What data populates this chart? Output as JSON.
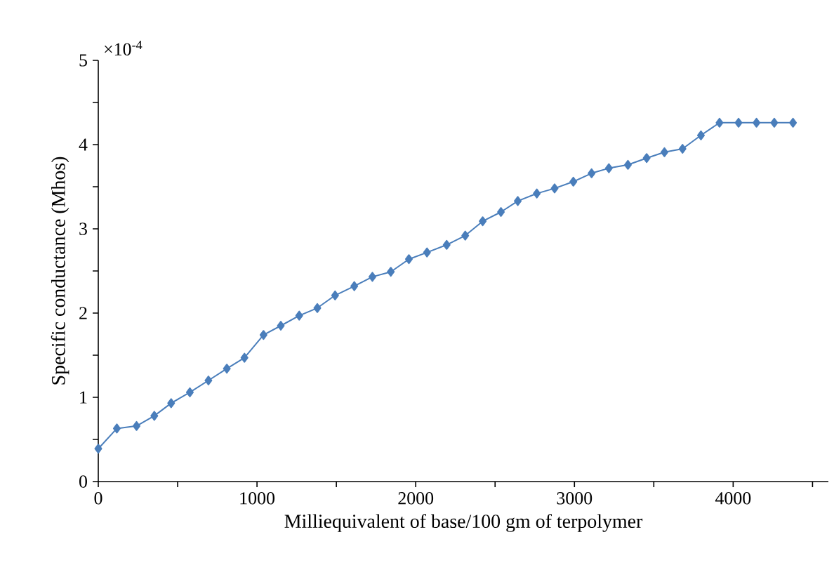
{
  "chart_data": {
    "type": "line",
    "xlabel": "Milliequivalent of base/100 gm of terpolymer",
    "ylabel": "Specific conductance (Mhos)",
    "annotations": [
      "×10$^{-4}$"
    ],
    "x": [
      0,
      117,
      241,
      353,
      459,
      577,
      694,
      810,
      921,
      1041,
      1150,
      1266,
      1380,
      1492,
      1613,
      1727,
      1843,
      1957,
      2071,
      2195,
      2312,
      2422,
      2537,
      2643,
      2763,
      2875,
      2993,
      3108,
      3217,
      3337,
      3455,
      3567,
      3681,
      3797,
      3914,
      4034,
      4147,
      4259,
      4377
    ],
    "series": [
      {
        "color": "#4a7ebb",
        "values": [
          0.39,
          0.63,
          0.66,
          0.78,
          0.93,
          1.06,
          1.2,
          1.34,
          1.47,
          1.74,
          1.85,
          1.97,
          2.06,
          2.21,
          2.32,
          2.43,
          2.49,
          2.64,
          2.72,
          2.81,
          2.92,
          3.09,
          3.2,
          3.33,
          3.42,
          3.48,
          3.56,
          3.66,
          3.72,
          3.76,
          3.84,
          3.91,
          3.95,
          4.11,
          4.26,
          4.26,
          4.26,
          4.26,
          4.26
        ]
      }
    ],
    "xlim": [
      0,
      4600
    ],
    "ylim": [
      0,
      5
    ],
    "xticks": [
      0,
      {
        "value": 500,
        "label": null
      },
      1000,
      {
        "value": 1500,
        "label": null
      },
      2000,
      {
        "value": 2500,
        "label": null
      },
      3000,
      {
        "value": 3500,
        "label": null
      },
      4000,
      {
        "value": 4500,
        "label": null
      }
    ],
    "yticks": [
      0,
      {
        "value": 0.5,
        "label": null
      },
      1,
      {
        "value": 1.5,
        "label": null
      },
      2,
      {
        "value": 2.5,
        "label": null
      },
      3,
      {
        "value": 3.5,
        "label": null
      },
      4,
      {
        "value": 4.5,
        "label": null
      },
      5
    ],
    "grid": false,
    "marker": "diamond",
    "line_style": "solid"
  }
}
